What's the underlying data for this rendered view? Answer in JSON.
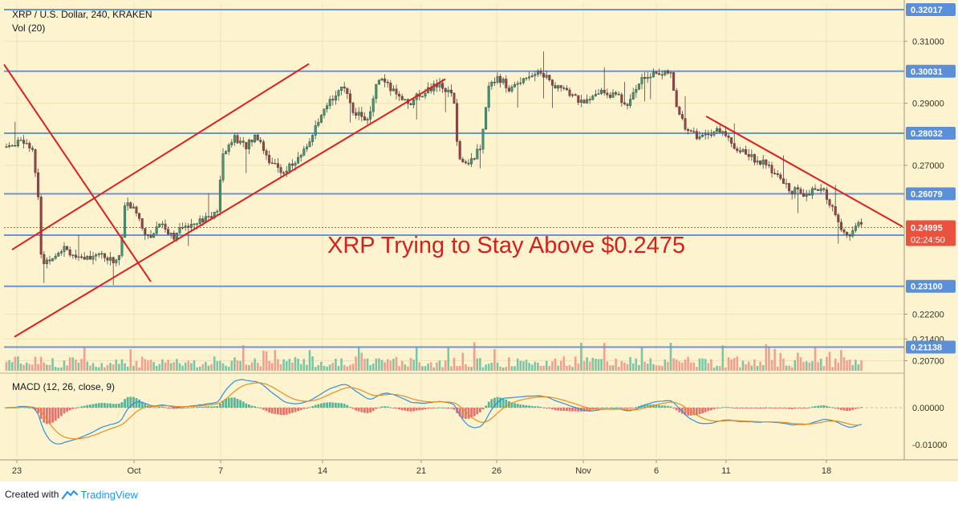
{
  "chart_data": {
    "type": "candlestick",
    "symbol_title": "XRP / U.S. Dollar, 240, KRAKEN",
    "volume_label": "Vol (20)",
    "macd_label": "MACD (12, 26, close, 9)",
    "annotation": "XRP Trying to Stay Above $0.2475",
    "price_ylim": [
      0.2035,
      0.3225
    ],
    "macd_ylim": [
      -0.0135,
      0.0085
    ],
    "price_ticks": [
      "0.31000",
      "0.29000",
      "0.27000",
      "0.22200",
      "0.21400",
      "0.20700"
    ],
    "macd_ticks": [
      "0.00000",
      "-0.01000"
    ],
    "x_tick_labels": [
      "23",
      "Oct",
      "7",
      "14",
      "21",
      "26",
      "Nov",
      "6",
      "11",
      "18"
    ],
    "support_resistance_levels": [
      "0.32017",
      "0.30031",
      "0.28032",
      "0.26079",
      "0.24747",
      "0.23100",
      "0.21138"
    ],
    "current_price": "0.24995",
    "countdown": "02:24:50",
    "price_path": [
      [
        0,
        0.28
      ],
      [
        10,
        0.275
      ],
      [
        25,
        0.279
      ],
      [
        40,
        0.276
      ],
      [
        48,
        0.258
      ],
      [
        52,
        0.238
      ],
      [
        62,
        0.24
      ],
      [
        80,
        0.244
      ],
      [
        100,
        0.239
      ],
      [
        120,
        0.242
      ],
      [
        140,
        0.239
      ],
      [
        150,
        0.241
      ],
      [
        156,
        0.258
      ],
      [
        170,
        0.255
      ],
      [
        185,
        0.246
      ],
      [
        200,
        0.252
      ],
      [
        215,
        0.247
      ],
      [
        240,
        0.252
      ],
      [
        270,
        0.254
      ],
      [
        278,
        0.273
      ],
      [
        290,
        0.279
      ],
      [
        305,
        0.276
      ],
      [
        320,
        0.28
      ],
      [
        335,
        0.272
      ],
      [
        350,
        0.268
      ],
      [
        370,
        0.271
      ],
      [
        390,
        0.28
      ],
      [
        410,
        0.29
      ],
      [
        425,
        0.296
      ],
      [
        440,
        0.288
      ],
      [
        460,
        0.284
      ],
      [
        470,
        0.298
      ],
      [
        490,
        0.294
      ],
      [
        510,
        0.29
      ],
      [
        530,
        0.294
      ],
      [
        550,
        0.296
      ],
      [
        565,
        0.292
      ],
      [
        572,
        0.272
      ],
      [
        585,
        0.27
      ],
      [
        600,
        0.277
      ],
      [
        610,
        0.296
      ],
      [
        620,
        0.299
      ],
      [
        635,
        0.294
      ],
      [
        655,
        0.299
      ],
      [
        675,
        0.3
      ],
      [
        690,
        0.296
      ],
      [
        710,
        0.293
      ],
      [
        730,
        0.29
      ],
      [
        750,
        0.294
      ],
      [
        770,
        0.292
      ],
      [
        785,
        0.29
      ],
      [
        800,
        0.299
      ],
      [
        820,
        0.3
      ],
      [
        836,
        0.299
      ],
      [
        842,
        0.29
      ],
      [
        855,
        0.282
      ],
      [
        870,
        0.279
      ],
      [
        890,
        0.281
      ],
      [
        905,
        0.28
      ],
      [
        915,
        0.276
      ],
      [
        935,
        0.273
      ],
      [
        955,
        0.27
      ],
      [
        970,
        0.266
      ],
      [
        985,
        0.262
      ],
      [
        1005,
        0.261
      ],
      [
        1025,
        0.262
      ],
      [
        1040,
        0.255
      ],
      [
        1055,
        0.246
      ],
      [
        1068,
        0.252
      ],
      [
        1077,
        0.249
      ]
    ],
    "trend_lines": [
      {
        "name": "descending-line-left",
        "from": [
          5,
          0.3025
        ],
        "to": [
          188,
          0.2325
        ]
      },
      {
        "name": "channel-upper",
        "from": [
          15,
          0.2428
        ],
        "to": [
          385,
          0.3027
        ]
      },
      {
        "name": "channel-lower",
        "from": [
          18,
          0.2147
        ],
        "to": [
          555,
          0.2978
        ]
      },
      {
        "name": "descending-line-right",
        "from": [
          880,
          0.2858
        ],
        "to": [
          1125,
          0.2502
        ]
      }
    ],
    "colors": {
      "background": "#fdf4cf",
      "up_candle": "#3b9a72",
      "down_candle": "#a03f3f",
      "level_line": "#6b93d6",
      "trend_line": "#de1f1f",
      "annotation": "#d81f1f",
      "volume_up": "#7cc6a8",
      "volume_down": "#f0a08e",
      "macd_line": "#2d8fe0",
      "signal_line": "#e88e1f",
      "hist_pos": "#38a98e",
      "hist_neg": "#e05a5a",
      "countdown_bg": "#e8523f"
    }
  },
  "footer": {
    "created_with": "Created with",
    "brand": "TradingView"
  }
}
